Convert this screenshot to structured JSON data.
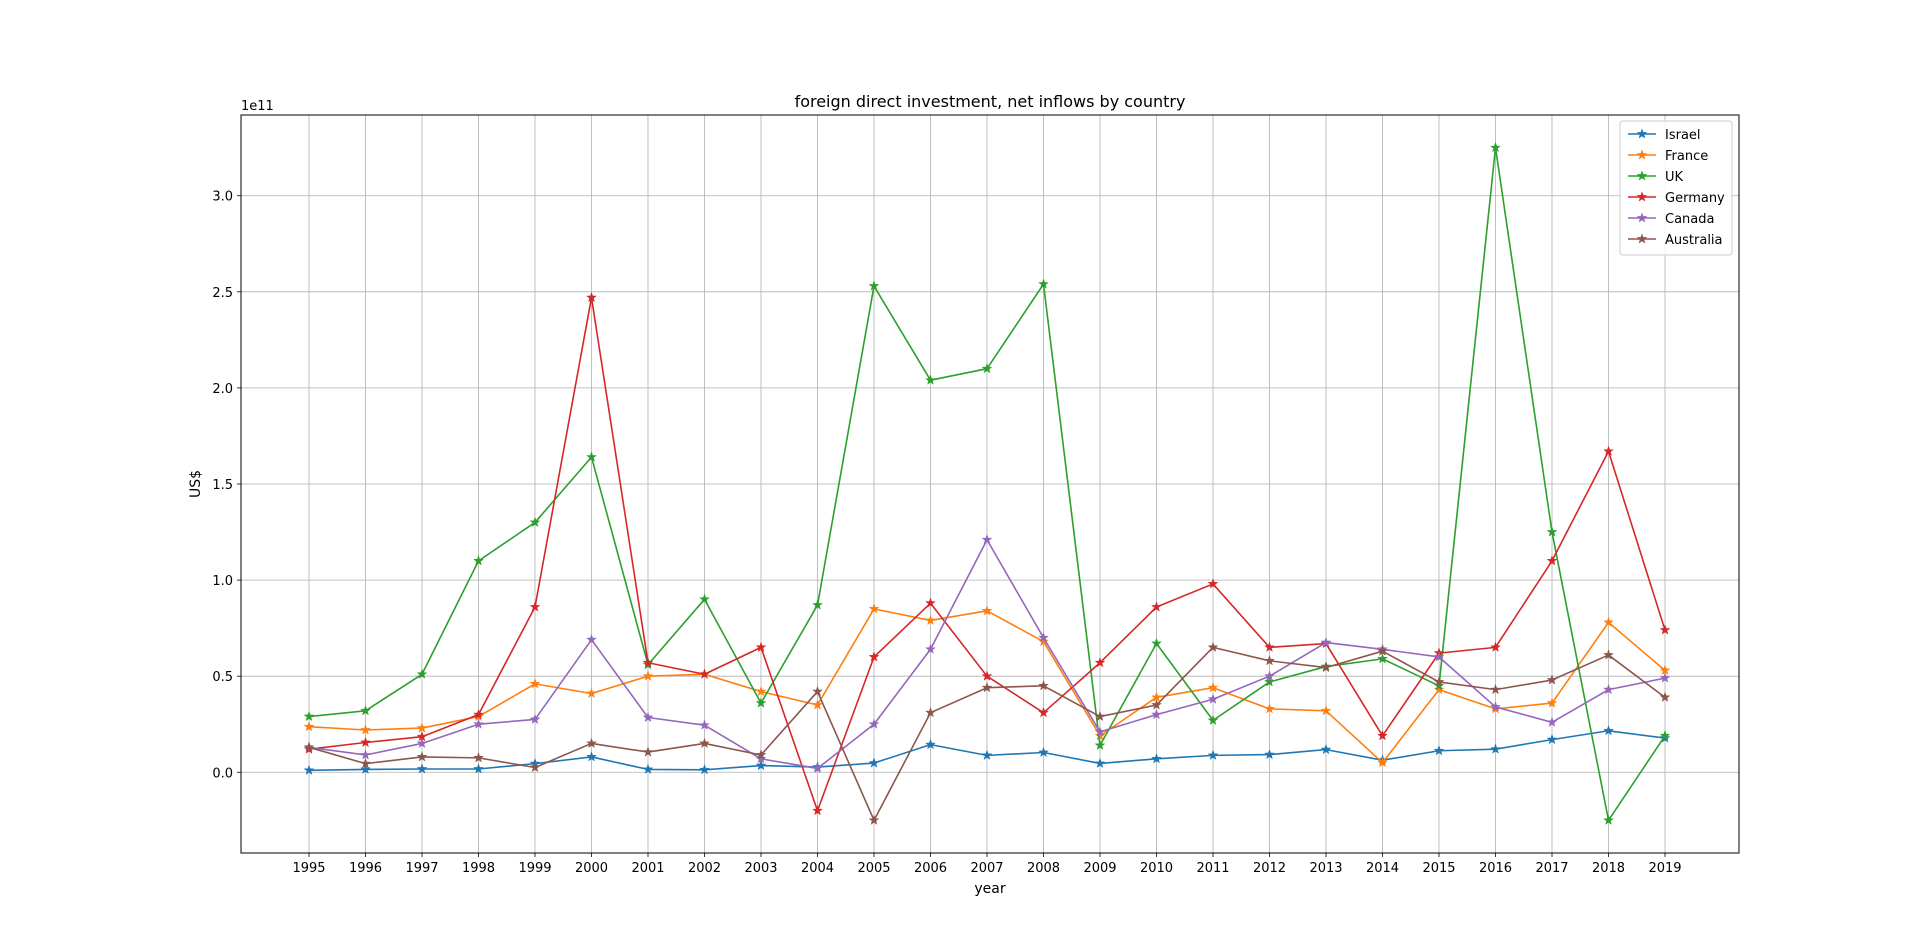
{
  "chart_data": {
    "type": "line",
    "title": "foreign direct investment, net inflows by country",
    "xlabel": "year",
    "ylabel": "US$",
    "y_offset_label": "1e11",
    "y_scale": 100000000000,
    "ylim": [
      -0.42,
      3.42
    ],
    "x": [
      "1995",
      "1996",
      "1997",
      "1998",
      "1999",
      "2000",
      "2001",
      "2002",
      "2003",
      "2004",
      "2005",
      "2006",
      "2007",
      "2008",
      "2009",
      "2010",
      "2011",
      "2012",
      "2013",
      "2014",
      "2015",
      "2016",
      "2017",
      "2018",
      "2019"
    ],
    "y_ticks": [
      "0.0",
      "0.5",
      "1.0",
      "1.5",
      "2.0",
      "2.5",
      "3.0"
    ],
    "grid": true,
    "legend_position": "top-right",
    "marker": "star",
    "series": [
      {
        "name": "Israel",
        "color": "#1f77b4",
        "values": [
          0.01,
          0.015,
          0.017,
          0.017,
          0.045,
          0.08,
          0.015,
          0.013,
          0.035,
          0.027,
          0.048,
          0.144,
          0.088,
          0.103,
          0.046,
          0.07,
          0.088,
          0.092,
          0.118,
          0.063,
          0.112,
          0.12,
          0.17,
          0.216,
          0.178
        ]
      },
      {
        "name": "France",
        "color": "#ff7f0e",
        "values": [
          0.237,
          0.22,
          0.23,
          0.29,
          0.46,
          0.41,
          0.5,
          0.51,
          0.42,
          0.35,
          0.85,
          0.79,
          0.84,
          0.68,
          0.19,
          0.39,
          0.44,
          0.33,
          0.32,
          0.05,
          0.43,
          0.33,
          0.36,
          0.78,
          0.53
        ]
      },
      {
        "name": "UK",
        "color": "#2ca02c",
        "values": [
          0.29,
          0.32,
          0.51,
          1.1,
          1.3,
          1.64,
          0.56,
          0.9,
          0.36,
          0.87,
          2.53,
          2.04,
          2.1,
          2.54,
          0.14,
          0.67,
          0.27,
          0.47,
          0.55,
          0.59,
          0.45,
          3.25,
          1.25,
          -0.25,
          0.19
        ]
      },
      {
        "name": "Germany",
        "color": "#d62728",
        "values": [
          0.12,
          0.155,
          0.185,
          0.3,
          0.86,
          2.47,
          0.57,
          0.51,
          0.65,
          -0.2,
          0.6,
          0.88,
          0.5,
          0.31,
          0.57,
          0.86,
          0.98,
          0.65,
          0.67,
          0.19,
          0.62,
          0.65,
          1.1,
          1.67,
          0.74
        ]
      },
      {
        "name": "Canada",
        "color": "#9467bd",
        "values": [
          0.13,
          0.09,
          0.15,
          0.25,
          0.275,
          0.69,
          0.285,
          0.245,
          0.07,
          0.02,
          0.25,
          0.64,
          1.21,
          0.7,
          0.21,
          0.3,
          0.38,
          0.5,
          0.675,
          0.64,
          0.6,
          0.34,
          0.26,
          0.43,
          0.49
        ]
      },
      {
        "name": "Australia",
        "color": "#8c564b",
        "values": [
          0.13,
          0.045,
          0.08,
          0.075,
          0.025,
          0.15,
          0.105,
          0.15,
          0.09,
          0.42,
          -0.25,
          0.31,
          0.44,
          0.45,
          0.29,
          0.35,
          0.65,
          0.58,
          0.545,
          0.63,
          0.47,
          0.43,
          0.48,
          0.61,
          0.39
        ]
      }
    ]
  }
}
